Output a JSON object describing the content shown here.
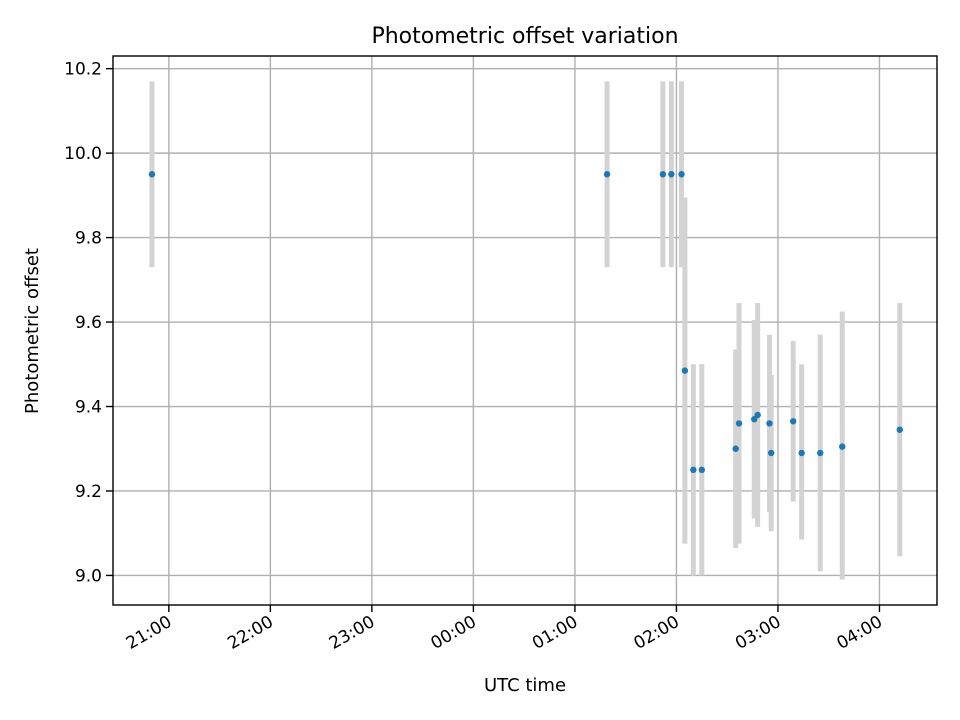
{
  "chart_data": {
    "type": "scatter",
    "title": "Photometric offset variation",
    "xlabel": "UTC time",
    "ylabel": "Photometric offset",
    "xlim": [
      "20:27",
      "04:34"
    ],
    "ylim": [
      8.93,
      10.23
    ],
    "x_ticks": [
      "21:00",
      "22:00",
      "23:00",
      "00:00",
      "01:00",
      "02:00",
      "03:00",
      "04:00"
    ],
    "y_ticks": [
      9.0,
      9.2,
      9.4,
      9.6,
      9.8,
      10.0,
      10.2
    ],
    "y_tick_labels": [
      "9.0",
      "9.2",
      "9.4",
      "9.6",
      "9.8",
      "10.0",
      "10.2"
    ],
    "grid": true,
    "marker_color": "#1f77b4",
    "errorbar_color": "#d3d3d3",
    "points": [
      {
        "time": "20:50",
        "y": 9.95,
        "ylow": 9.73,
        "yhigh": 10.17
      },
      {
        "time": "01:19",
        "y": 9.95,
        "ylow": 9.73,
        "yhigh": 10.17
      },
      {
        "time": "01:52",
        "y": 9.95,
        "ylow": 9.73,
        "yhigh": 10.17
      },
      {
        "time": "01:57",
        "y": 9.95,
        "ylow": 9.73,
        "yhigh": 10.17
      },
      {
        "time": "02:03",
        "y": 9.95,
        "ylow": 9.73,
        "yhigh": 10.17
      },
      {
        "time": "02:05",
        "y": 9.485,
        "ylow": 9.075,
        "yhigh": 9.895
      },
      {
        "time": "02:10",
        "y": 9.25,
        "ylow": 9.0,
        "yhigh": 9.5
      },
      {
        "time": "02:15",
        "y": 9.25,
        "ylow": 9.0,
        "yhigh": 9.5
      },
      {
        "time": "02:35",
        "y": 9.3,
        "ylow": 9.065,
        "yhigh": 9.535
      },
      {
        "time": "02:37",
        "y": 9.36,
        "ylow": 9.075,
        "yhigh": 9.645
      },
      {
        "time": "02:46",
        "y": 9.37,
        "ylow": 9.135,
        "yhigh": 9.605
      },
      {
        "time": "02:48",
        "y": 9.38,
        "ylow": 9.115,
        "yhigh": 9.645
      },
      {
        "time": "02:55",
        "y": 9.36,
        "ylow": 9.15,
        "yhigh": 9.57
      },
      {
        "time": "02:56",
        "y": 9.29,
        "ylow": 9.105,
        "yhigh": 9.475
      },
      {
        "time": "03:09",
        "y": 9.365,
        "ylow": 9.175,
        "yhigh": 9.555
      },
      {
        "time": "03:14",
        "y": 9.29,
        "ylow": 9.085,
        "yhigh": 9.5
      },
      {
        "time": "03:25",
        "y": 9.29,
        "ylow": 9.01,
        "yhigh": 9.57
      },
      {
        "time": "03:38",
        "y": 9.305,
        "ylow": 8.99,
        "yhigh": 9.625
      },
      {
        "time": "04:12",
        "y": 9.345,
        "ylow": 9.045,
        "yhigh": 9.645
      }
    ]
  }
}
